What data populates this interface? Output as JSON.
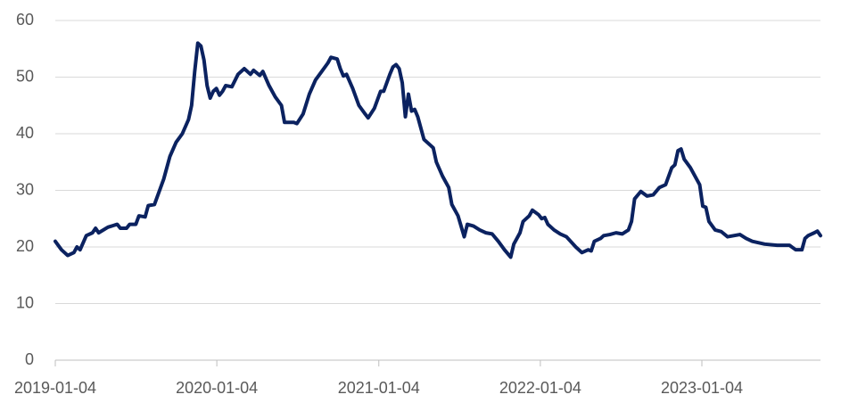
{
  "chart_data": {
    "type": "line",
    "x": [
      "2019-01-04",
      "2019-01-18",
      "2019-02-01",
      "2019-02-15",
      "2019-02-22",
      "2019-03-01",
      "2019-03-15",
      "2019-03-29",
      "2019-04-05",
      "2019-04-12",
      "2019-05-03",
      "2019-05-24",
      "2019-05-31",
      "2019-06-14",
      "2019-06-21",
      "2019-07-05",
      "2019-07-12",
      "2019-07-26",
      "2019-08-02",
      "2019-08-16",
      "2019-09-06",
      "2019-09-20",
      "2019-10-04",
      "2019-10-18",
      "2019-11-01",
      "2019-11-08",
      "2019-11-15",
      "2019-11-22",
      "2019-11-29",
      "2019-12-06",
      "2019-12-13",
      "2019-12-20",
      "2019-12-27",
      "2020-01-03",
      "2020-01-10",
      "2020-01-17",
      "2020-01-24",
      "2020-02-07",
      "2020-02-21",
      "2020-03-06",
      "2020-03-20",
      "2020-03-27",
      "2020-04-10",
      "2020-04-17",
      "2020-05-01",
      "2020-05-15",
      "2020-05-29",
      "2020-06-05",
      "2020-06-26",
      "2020-07-03",
      "2020-07-17",
      "2020-07-31",
      "2020-08-14",
      "2020-08-28",
      "2020-09-11",
      "2020-09-18",
      "2020-10-02",
      "2020-10-09",
      "2020-10-16",
      "2020-10-23",
      "2020-11-06",
      "2020-11-20",
      "2020-12-04",
      "2020-12-11",
      "2020-12-25",
      "2021-01-08",
      "2021-01-15",
      "2021-01-29",
      "2021-02-05",
      "2021-02-12",
      "2021-02-19",
      "2021-02-26",
      "2021-03-05",
      "2021-03-12",
      "2021-03-19",
      "2021-03-26",
      "2021-04-02",
      "2021-04-16",
      "2021-04-30",
      "2021-05-07",
      "2021-05-14",
      "2021-05-28",
      "2021-06-11",
      "2021-06-18",
      "2021-07-02",
      "2021-07-16",
      "2021-07-23",
      "2021-08-06",
      "2021-08-20",
      "2021-09-03",
      "2021-09-17",
      "2021-10-01",
      "2021-10-15",
      "2021-10-29",
      "2021-11-05",
      "2021-11-19",
      "2021-11-26",
      "2021-12-10",
      "2021-12-17",
      "2021-12-31",
      "2022-01-07",
      "2022-01-14",
      "2022-01-21",
      "2022-02-04",
      "2022-02-18",
      "2022-03-04",
      "2022-03-25",
      "2022-04-08",
      "2022-04-22",
      "2022-04-29",
      "2022-05-06",
      "2022-05-20",
      "2022-05-27",
      "2022-06-10",
      "2022-06-24",
      "2022-07-08",
      "2022-07-22",
      "2022-07-29",
      "2022-08-05",
      "2022-08-19",
      "2022-09-02",
      "2022-09-16",
      "2022-09-30",
      "2022-10-14",
      "2022-10-28",
      "2022-11-04",
      "2022-11-11",
      "2022-11-18",
      "2022-11-25",
      "2022-12-09",
      "2022-12-16",
      "2022-12-30",
      "2023-01-06",
      "2023-01-13",
      "2023-01-20",
      "2023-02-03",
      "2023-02-17",
      "2023-03-03",
      "2023-03-17",
      "2023-03-31",
      "2023-04-14",
      "2023-04-28",
      "2023-05-26",
      "2023-06-23",
      "2023-07-21",
      "2023-08-04",
      "2023-08-18",
      "2023-08-25",
      "2023-09-01",
      "2023-09-15",
      "2023-09-22",
      "2023-09-29"
    ],
    "series": [
      {
        "color": "#0b2260",
        "values": [
          21,
          19.5,
          18.5,
          19,
          20,
          19.5,
          22,
          22.5,
          23.3,
          22.5,
          23.5,
          24,
          23.3,
          23.3,
          24,
          24,
          25.5,
          25.3,
          27.3,
          27.5,
          32,
          36,
          38.5,
          40,
          42.5,
          45,
          51,
          56,
          55.5,
          53,
          48.5,
          46.3,
          47.5,
          48,
          46.8,
          47.5,
          48.5,
          48.3,
          50.5,
          51.5,
          50.5,
          51.2,
          50.3,
          51,
          48.5,
          46.5,
          45,
          42,
          42,
          41.8,
          43.5,
          47,
          49.5,
          51,
          52.5,
          53.5,
          53.2,
          51.5,
          50.2,
          50.5,
          48,
          45,
          43.5,
          42.8,
          44.5,
          47.5,
          47.5,
          50.5,
          51.8,
          52.2,
          51.5,
          49,
          43,
          47,
          44,
          44.3,
          43,
          39,
          38,
          37.5,
          35,
          32.5,
          30.5,
          27.5,
          25.5,
          21.8,
          24,
          23.7,
          23,
          22.5,
          22.3,
          21,
          19.5,
          18.2,
          20.5,
          22.5,
          24.5,
          25.5,
          26.5,
          25.7,
          25,
          25.2,
          24,
          23,
          22.3,
          21.8,
          20,
          19,
          19.5,
          19.3,
          21,
          21.5,
          22,
          22.2,
          22.5,
          22.3,
          23,
          24.5,
          28.5,
          29.8,
          29,
          29.2,
          30.5,
          31,
          34,
          34.5,
          37,
          37.3,
          35.5,
          34,
          33,
          31,
          27.2,
          27,
          24.5,
          23,
          22.7,
          21.8,
          22,
          22.2,
          21.5,
          21,
          20.5,
          20.3,
          20.3,
          19.5,
          19.5,
          21.5,
          22,
          22.5,
          22.8,
          22
        ]
      }
    ],
    "xlim": [
      "2019-01-04",
      "2023-09-29"
    ],
    "xticks": [
      "2019-01-04",
      "2020-01-04",
      "2021-01-04",
      "2022-01-04",
      "2023-01-04"
    ],
    "ylim": [
      0,
      60
    ],
    "yticks": [
      0,
      10,
      20,
      30,
      40,
      50,
      60
    ],
    "grid": true
  }
}
